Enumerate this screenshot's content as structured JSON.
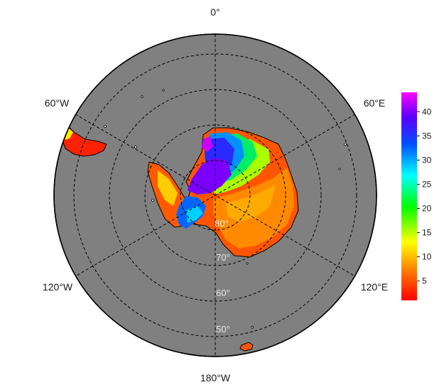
{
  "map": {
    "projection": "south polar stereographic",
    "ocean_color": "#808080",
    "rim_color": "#000000",
    "graticule_style": "dashed",
    "longitude_labels": [
      {
        "id": "0",
        "text": "0°"
      },
      {
        "id": "60w",
        "text": "60°W"
      },
      {
        "id": "60e",
        "text": "60°E"
      },
      {
        "id": "120w",
        "text": "120°W"
      },
      {
        "id": "120e",
        "text": "120°E"
      },
      {
        "id": "180w",
        "text": "180°W"
      }
    ],
    "latitude_labels": [
      {
        "id": "80",
        "text": "80°"
      },
      {
        "id": "70",
        "text": "70°"
      },
      {
        "id": "60",
        "text": "60°"
      },
      {
        "id": "50",
        "text": "50°"
      }
    ],
    "data_regions": [
      "Antarctica",
      "Antarctic Peninsula",
      "South America tip",
      "Kerguelen Islands"
    ]
  },
  "colorbar": {
    "ticks": [
      "5",
      "10",
      "15",
      "20",
      "25",
      "30",
      "35",
      "40"
    ],
    "range": [
      1,
      44
    ],
    "colors": [
      "#ff0000",
      "#ff7a00",
      "#ffff00",
      "#00ff00",
      "#00ffff",
      "#0050ff",
      "#5a00ff",
      "#ff00ff"
    ]
  }
}
